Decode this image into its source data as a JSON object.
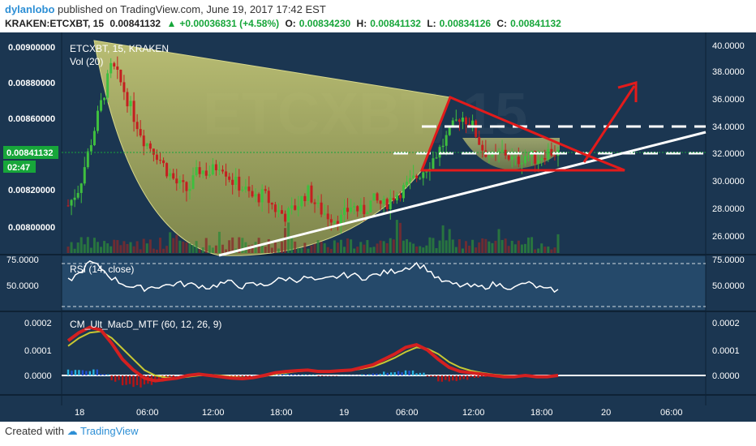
{
  "header": {
    "user": "dylanlobo",
    "published": "published on TradingView.com, June 19, 2017 17:42 EST",
    "symbol": "KRAKEN:ETCXBT, 15",
    "last": "0.00841132",
    "change": "+0.00036831 (+4.58%)",
    "o_label": "O:",
    "o": "0.00834230",
    "h_label": "H:",
    "h": "0.00841132",
    "l_label": "L:",
    "l": "0.00834126",
    "c_label": "C:",
    "c": "0.00841132"
  },
  "footer": {
    "created": "Created with",
    "brand": "TradingView"
  },
  "colors": {
    "bg": "#1b3651",
    "up": "#3fbf3f",
    "down": "#c41f1f",
    "accent": "#17a63a",
    "annot": "#e31b1b",
    "cup": "#c8c86e"
  },
  "chart_data": [
    {
      "type": "candlestick",
      "title": "ETCXBT, 15, KRAKEN",
      "subtitle": "Vol (20)",
      "watermark": "ETCXBT, 15",
      "left_axis_ticks": [
        "0.00900000",
        "0.00880000",
        "0.00860000",
        "0.00820000",
        "0.00800000"
      ],
      "left_axis_tick_values": [
        0.009,
        0.0088,
        0.0086,
        0.0082,
        0.008
      ],
      "price_label": "0.00841132",
      "countdown_label": "02:47",
      "right_axis_ticks": [
        "40.0000",
        "38.0000",
        "36.0000",
        "34.0000",
        "32.0000",
        "30.0000",
        "28.0000",
        "26.0000"
      ],
      "right_axis_tick_values": [
        40,
        38,
        36,
        34,
        32,
        30,
        28,
        26
      ],
      "x_ticks": [
        "18",
        "06:00",
        "12:00",
        "18:00",
        "19",
        "06:00",
        "12:00",
        "18:00",
        "20",
        "06:00"
      ],
      "close_series": [
        0.00812,
        0.00822,
        0.00845,
        0.00868,
        0.0089,
        0.00878,
        0.00862,
        0.00848,
        0.00842,
        0.00832,
        0.00824,
        0.0082,
        0.00832,
        0.0083,
        0.00836,
        0.00826,
        0.00822,
        0.00816,
        0.00818,
        0.0081,
        0.00806,
        0.00812,
        0.0082,
        0.0081,
        0.00806,
        0.00804,
        0.00812,
        0.00808,
        0.00815,
        0.00812,
        0.00818,
        0.00822,
        0.00828,
        0.00834,
        0.00842,
        0.00852,
        0.00862,
        0.00858,
        0.00844,
        0.00838,
        0.00842,
        0.00836,
        0.0084,
        0.00838,
        0.00842,
        0.00841132
      ],
      "annotations": [
        "cup and handle",
        "descending triangle resistance",
        "rising support trendline",
        "breakout target arrow",
        "horizontal dashed levels"
      ]
    },
    {
      "type": "line",
      "title": "RSI (14, close)",
      "ylim": [
        25,
        75
      ],
      "ticks": [
        "75.0000",
        "50.0000"
      ],
      "tick_values": [
        75,
        50
      ],
      "levels": [
        70,
        30
      ],
      "values": [
        55,
        62,
        74,
        68,
        58,
        52,
        48,
        47,
        49,
        50,
        52,
        51,
        50,
        48,
        52,
        53,
        49,
        51,
        50,
        55,
        57,
        56,
        58,
        54,
        57,
        60,
        61,
        58,
        60,
        63,
        65,
        68,
        72,
        67,
        56,
        52,
        50,
        49,
        48,
        51,
        50,
        47,
        53,
        49,
        45,
        46
      ]
    },
    {
      "type": "line",
      "title": "CM_Ult_MacD_MTF (60, 12, 26, 9)",
      "ticks": [
        "0.0002",
        "0.0001",
        "0.0000"
      ],
      "tick_values": [
        0.0002,
        0.0001,
        0.0
      ],
      "ylim": [
        -5e-05,
        0.00025
      ],
      "macd": [
        0.00013,
        0.00016,
        0.00018,
        0.00017,
        0.00012,
        6e-05,
        2e-05,
        -1e-05,
        -2e-05,
        -1.5e-05,
        -1e-05,
        0.0,
        5e-06,
        0.0,
        -5e-06,
        -1e-05,
        -1.2e-05,
        -8e-06,
        0.0,
        1e-05,
        1.5e-05,
        1.8e-05,
        2e-05,
        1.5e-05,
        1.5e-05,
        1.8e-05,
        2e-05,
        3e-05,
        4e-05,
        6e-05,
        8e-05,
        0.000105,
        0.000115,
        9.5e-05,
        6e-05,
        3e-05,
        1.5e-05,
        1e-05,
        5e-06,
        0.0,
        -5e-06,
        -5e-06,
        0.0,
        -5e-06,
        -5e-06,
        0.0
      ],
      "signal": [
        0.00011,
        0.00014,
        0.00016,
        0.000165,
        0.00014,
        0.0001,
        6e-05,
        2e-05,
        0.0,
        -8e-06,
        -1e-05,
        -5e-06,
        0.0,
        2e-06,
        0.0,
        -5e-06,
        -8e-06,
        -8e-06,
        -3e-06,
        5e-06,
        1e-05,
        1.5e-05,
        1.8e-05,
        1.7e-05,
        1.6e-05,
        1.7e-05,
        1.9e-05,
        2.5e-05,
        3.3e-05,
        4.8e-05,
        6.6e-05,
        8.8e-05,
        0.000105,
        0.0001,
        8e-05,
        5e-05,
        3e-05,
        1.8e-05,
        1e-05,
        4e-06,
        0.0,
        -2e-06,
        0.0,
        -2e-06,
        -4e-06,
        -2e-06
      ],
      "hist": [
        2e-05,
        2e-05,
        2e-05,
        5e-06,
        -2e-05,
        -4e-05,
        -4e-05,
        -3e-05,
        -2e-05,
        -7e-06,
        0.0,
        5e-06,
        5e-06,
        -2e-06,
        -5e-06,
        -5e-06,
        -4e-06,
        0.0,
        3e-06,
        5e-06,
        5e-06,
        3e-06,
        2e-06,
        -2e-06,
        -1e-06,
        1e-06,
        1e-06,
        5e-06,
        7e-06,
        1.2e-05,
        1.4e-05,
        1.7e-05,
        1e-05,
        -5e-06,
        -2e-05,
        -2e-05,
        -1.5e-05,
        -8e-06,
        -5e-06,
        -4e-06,
        -5e-06,
        -3e-06,
        0.0,
        -3e-06,
        -1e-06,
        2e-06
      ]
    }
  ]
}
